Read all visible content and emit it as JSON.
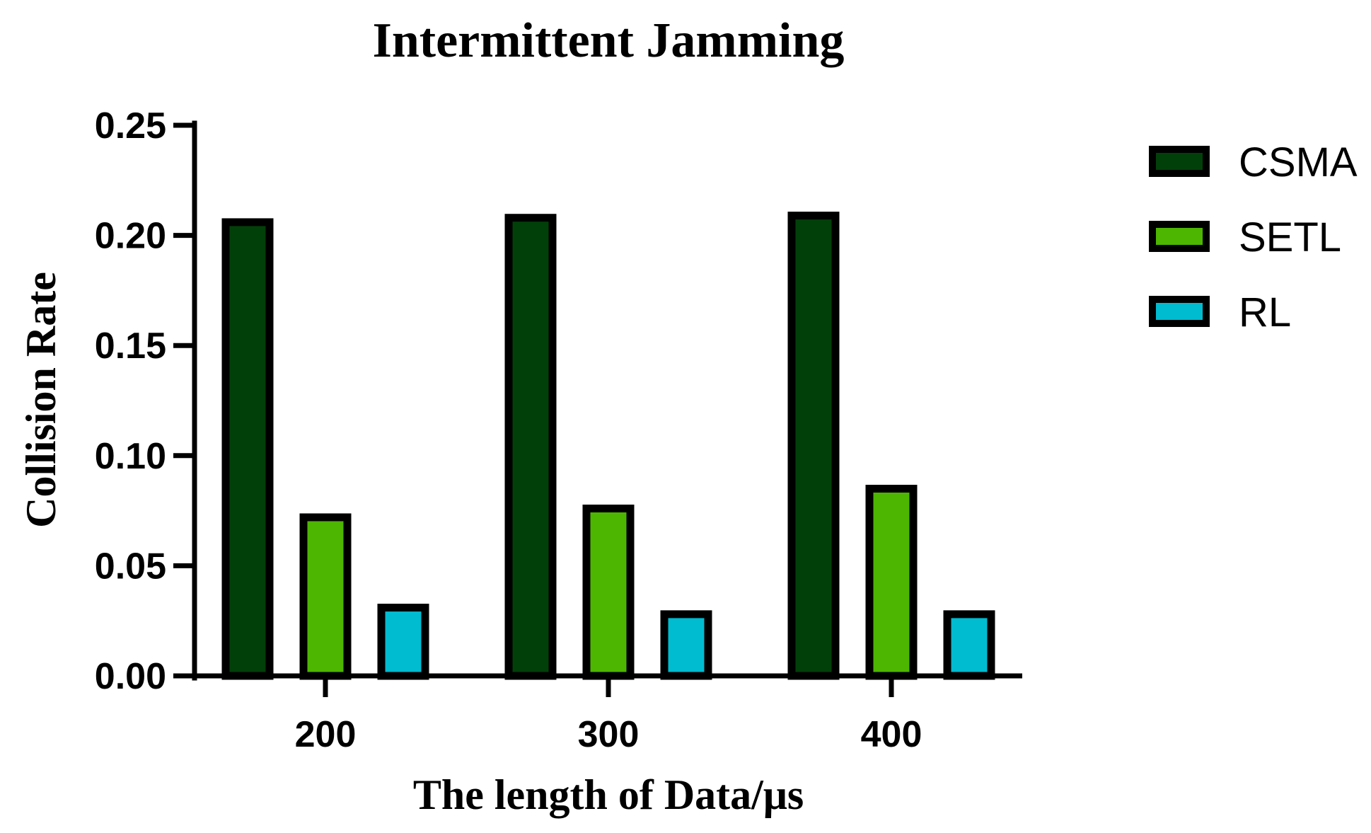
{
  "chart_data": {
    "type": "bar",
    "title": "Intermittent Jamming",
    "xlabel": "The length of Data/μs",
    "ylabel": "Collision Rate",
    "categories": [
      "200",
      "300",
      "400"
    ],
    "ylim": [
      0,
      0.25
    ],
    "yticks": [
      "0.00",
      "0.05",
      "0.10",
      "0.15",
      "0.20",
      "0.25"
    ],
    "grid": false,
    "legend_position": "right",
    "series": [
      {
        "name": "CSMA",
        "color": "#02400a",
        "values": [
          0.206,
          0.208,
          0.209
        ]
      },
      {
        "name": "SETL",
        "color": "#4db600",
        "values": [
          0.072,
          0.076,
          0.085
        ]
      },
      {
        "name": "RL",
        "color": "#00bcd1",
        "values": [
          0.031,
          0.028,
          0.028
        ]
      }
    ]
  }
}
